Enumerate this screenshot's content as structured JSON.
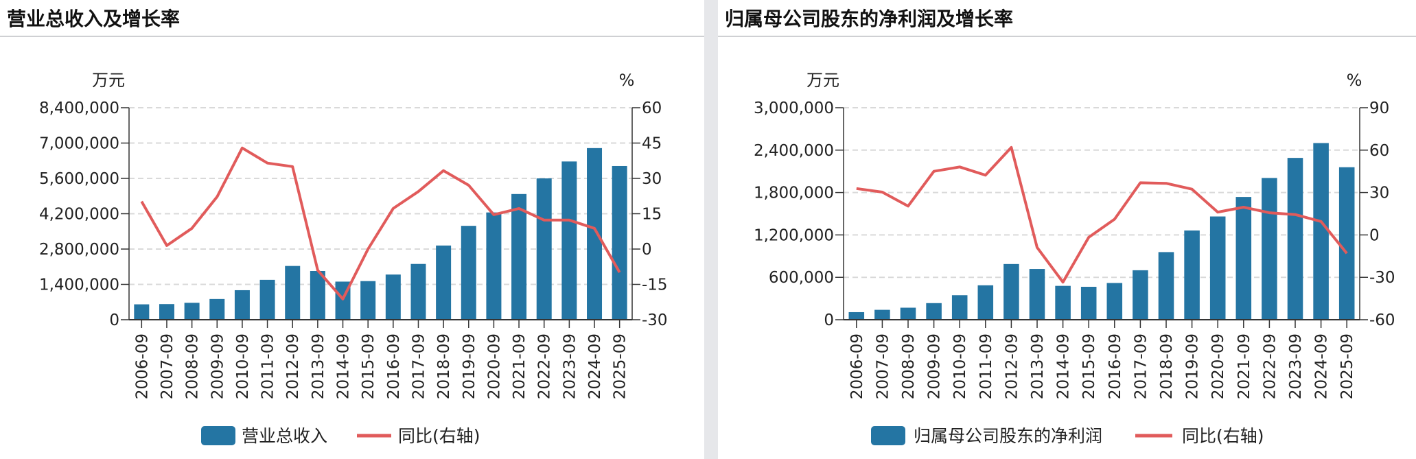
{
  "colors": {
    "bar": "#2475a3",
    "line": "#e15b5b",
    "grid": "#d9d9d9",
    "axis": "#333333"
  },
  "chart_data": [
    {
      "type": "bar+line",
      "title": "营业总收入及增长率",
      "left_unit": "万元",
      "right_unit": "%",
      "categories": [
        "2006-09",
        "2007-09",
        "2008-09",
        "2009-09",
        "2010-09",
        "2011-09",
        "2012-09",
        "2013-09",
        "2014-09",
        "2015-09",
        "2016-09",
        "2017-09",
        "2018-09",
        "2019-09",
        "2020-09",
        "2021-09",
        "2022-09",
        "2023-09",
        "2024-09",
        "2025-09"
      ],
      "left_axis": {
        "min": 0,
        "max": 8400000,
        "ticks": [
          "0",
          "1,400,000",
          "2,800,000",
          "4,200,000",
          "5,600,000",
          "7,000,000",
          "8,400,000"
        ]
      },
      "right_axis": {
        "min": -30,
        "max": 60,
        "ticks": [
          "-30",
          "-15",
          "0",
          "15",
          "30",
          "45",
          "60"
        ]
      },
      "grid": true,
      "legend_position": "bottom",
      "series": [
        {
          "name": "营业总收入",
          "type": "bar",
          "axis": "left",
          "values": [
            610000,
            620000,
            670000,
            820000,
            1170000,
            1580000,
            2130000,
            1930000,
            1510000,
            1530000,
            1790000,
            2210000,
            2940000,
            3720000,
            4250000,
            4980000,
            5600000,
            6270000,
            6800000,
            6090000
          ]
        },
        {
          "name": "同比(右轴)",
          "type": "line",
          "axis": "right",
          "values": [
            20.2,
            1.5,
            8.8,
            22.2,
            42.9,
            36.5,
            35.0,
            -9.0,
            -21.2,
            0.0,
            17.2,
            24.4,
            33.3,
            27.1,
            14.6,
            17.2,
            12.3,
            12.3,
            8.8,
            -9.9
          ]
        }
      ]
    },
    {
      "type": "bar+line",
      "title": "归属母公司股东的净利润及增长率",
      "left_unit": "万元",
      "right_unit": "%",
      "categories": [
        "2006-09",
        "2007-09",
        "2008-09",
        "2009-09",
        "2010-09",
        "2011-09",
        "2012-09",
        "2013-09",
        "2014-09",
        "2015-09",
        "2016-09",
        "2017-09",
        "2018-09",
        "2019-09",
        "2020-09",
        "2021-09",
        "2022-09",
        "2023-09",
        "2024-09",
        "2025-09"
      ],
      "left_axis": {
        "min": 0,
        "max": 3000000,
        "ticks": [
          "0",
          "600,000",
          "1,200,000",
          "1,800,000",
          "2,400,000",
          "3,000,000"
        ]
      },
      "right_axis": {
        "min": -60,
        "max": 90,
        "ticks": [
          "-60",
          "-30",
          "0",
          "30",
          "60",
          "90"
        ]
      },
      "grid": true,
      "legend_position": "bottom",
      "series": [
        {
          "name": "归属母公司股东的净利润",
          "type": "bar",
          "axis": "left",
          "values": [
            107000,
            140000,
            170000,
            235000,
            347000,
            487000,
            788000,
            718000,
            479000,
            466000,
            520000,
            700000,
            957000,
            1263000,
            1461000,
            1737000,
            2006000,
            2290000,
            2500000,
            2158000
          ]
        },
        {
          "name": "同比(右轴)",
          "type": "line",
          "axis": "right",
          "values": [
            32.8,
            30.3,
            20.4,
            45.0,
            48.1,
            42.3,
            61.9,
            -8.9,
            -33.4,
            -1.7,
            11.1,
            36.9,
            36.5,
            32.4,
            16.1,
            19.6,
            15.7,
            14.4,
            9.5,
            -13.0
          ]
        }
      ]
    }
  ]
}
